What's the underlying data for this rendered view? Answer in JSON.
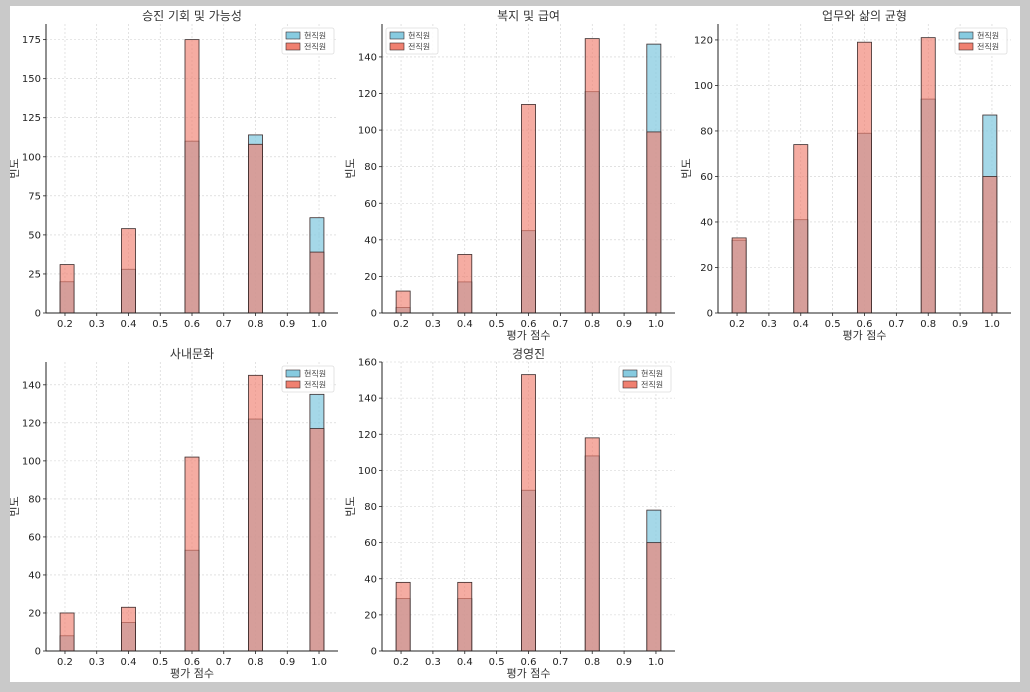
{
  "colors": {
    "current": "#87cbe0",
    "former": "#f08070",
    "edge": "#3a2a2a"
  },
  "chart_data": [
    {
      "type": "bar",
      "title": "승진 기회 및 가능성",
      "xlabel": "",
      "ylabel": "빈도",
      "categories": [
        0.2,
        0.4,
        0.6,
        0.8,
        1.0
      ],
      "series": [
        {
          "name": "현직원",
          "values": [
            20,
            28,
            110,
            114,
            61
          ]
        },
        {
          "name": "전직원",
          "values": [
            31,
            54,
            175,
            108,
            39
          ]
        }
      ],
      "xlim": [
        0.2,
        1.0
      ],
      "ylim": [
        0,
        185
      ],
      "xticks": [
        "0.2",
        "0.3",
        "0.4",
        "0.5",
        "0.6",
        "0.7",
        "0.8",
        "0.9",
        "1.0"
      ],
      "yticks": [
        "0",
        "25",
        "50",
        "75",
        "100",
        "125",
        "150",
        "175"
      ],
      "grid": true,
      "legend": "top-right"
    },
    {
      "type": "bar",
      "title": "복지 및 급여",
      "xlabel": "평가 점수",
      "ylabel": "빈도",
      "categories": [
        0.2,
        0.4,
        0.6,
        0.8,
        1.0
      ],
      "series": [
        {
          "name": "현직원",
          "values": [
            3,
            17,
            45,
            121,
            147
          ]
        },
        {
          "name": "전직원",
          "values": [
            12,
            32,
            114,
            150,
            99
          ]
        }
      ],
      "xlim": [
        0.2,
        1.0
      ],
      "ylim": [
        0,
        158
      ],
      "xticks": [
        "0.2",
        "0.3",
        "0.4",
        "0.5",
        "0.6",
        "0.7",
        "0.8",
        "0.9",
        "1.0"
      ],
      "yticks": [
        "0",
        "20",
        "40",
        "60",
        "80",
        "100",
        "120",
        "140"
      ],
      "grid": true,
      "legend": "top-left"
    },
    {
      "type": "bar",
      "title": "업무와 삶의 균형",
      "xlabel": "평가 점수",
      "ylabel": "빈도",
      "categories": [
        0.2,
        0.4,
        0.6,
        0.8,
        1.0
      ],
      "series": [
        {
          "name": "현직원",
          "values": [
            32,
            41,
            79,
            94,
            87
          ]
        },
        {
          "name": "전직원",
          "values": [
            33,
            74,
            119,
            121,
            60
          ]
        }
      ],
      "xlim": [
        0.2,
        1.0
      ],
      "ylim": [
        0,
        127
      ],
      "xticks": [
        "0.2",
        "0.3",
        "0.4",
        "0.5",
        "0.6",
        "0.7",
        "0.8",
        "0.9",
        "1.0"
      ],
      "yticks": [
        "0",
        "20",
        "40",
        "60",
        "80",
        "100",
        "120"
      ],
      "grid": true,
      "legend": "top-right"
    },
    {
      "type": "bar",
      "title": "사내문화",
      "xlabel": "평가 점수",
      "ylabel": "빈도",
      "categories": [
        0.2,
        0.4,
        0.6,
        0.8,
        1.0
      ],
      "series": [
        {
          "name": "현직원",
          "values": [
            8,
            15,
            53,
            122,
            135
          ]
        },
        {
          "name": "전직원",
          "values": [
            20,
            23,
            102,
            145,
            117
          ]
        }
      ],
      "xlim": [
        0.2,
        1.0
      ],
      "ylim": [
        0,
        152
      ],
      "xticks": [
        "0.2",
        "0.3",
        "0.4",
        "0.5",
        "0.6",
        "0.7",
        "0.8",
        "0.9",
        "1.0"
      ],
      "yticks": [
        "0",
        "20",
        "40",
        "60",
        "80",
        "100",
        "120",
        "140"
      ],
      "grid": true,
      "legend": "top-right"
    },
    {
      "type": "bar",
      "title": "경영진",
      "xlabel": "평가 점수",
      "ylabel": "빈도",
      "categories": [
        0.2,
        0.4,
        0.6,
        0.8,
        1.0
      ],
      "series": [
        {
          "name": "현직원",
          "values": [
            29,
            29,
            89,
            108,
            78
          ]
        },
        {
          "name": "전직원",
          "values": [
            38,
            38,
            153,
            118,
            60
          ]
        }
      ],
      "xlim": [
        0.2,
        1.0
      ],
      "ylim": [
        0,
        160
      ],
      "xticks": [
        "0.2",
        "0.3",
        "0.4",
        "0.5",
        "0.6",
        "0.7",
        "0.8",
        "0.9",
        "1.0"
      ],
      "yticks": [
        "0",
        "20",
        "40",
        "60",
        "80",
        "100",
        "120",
        "140",
        "160"
      ],
      "grid": true,
      "legend": "top-right"
    }
  ]
}
